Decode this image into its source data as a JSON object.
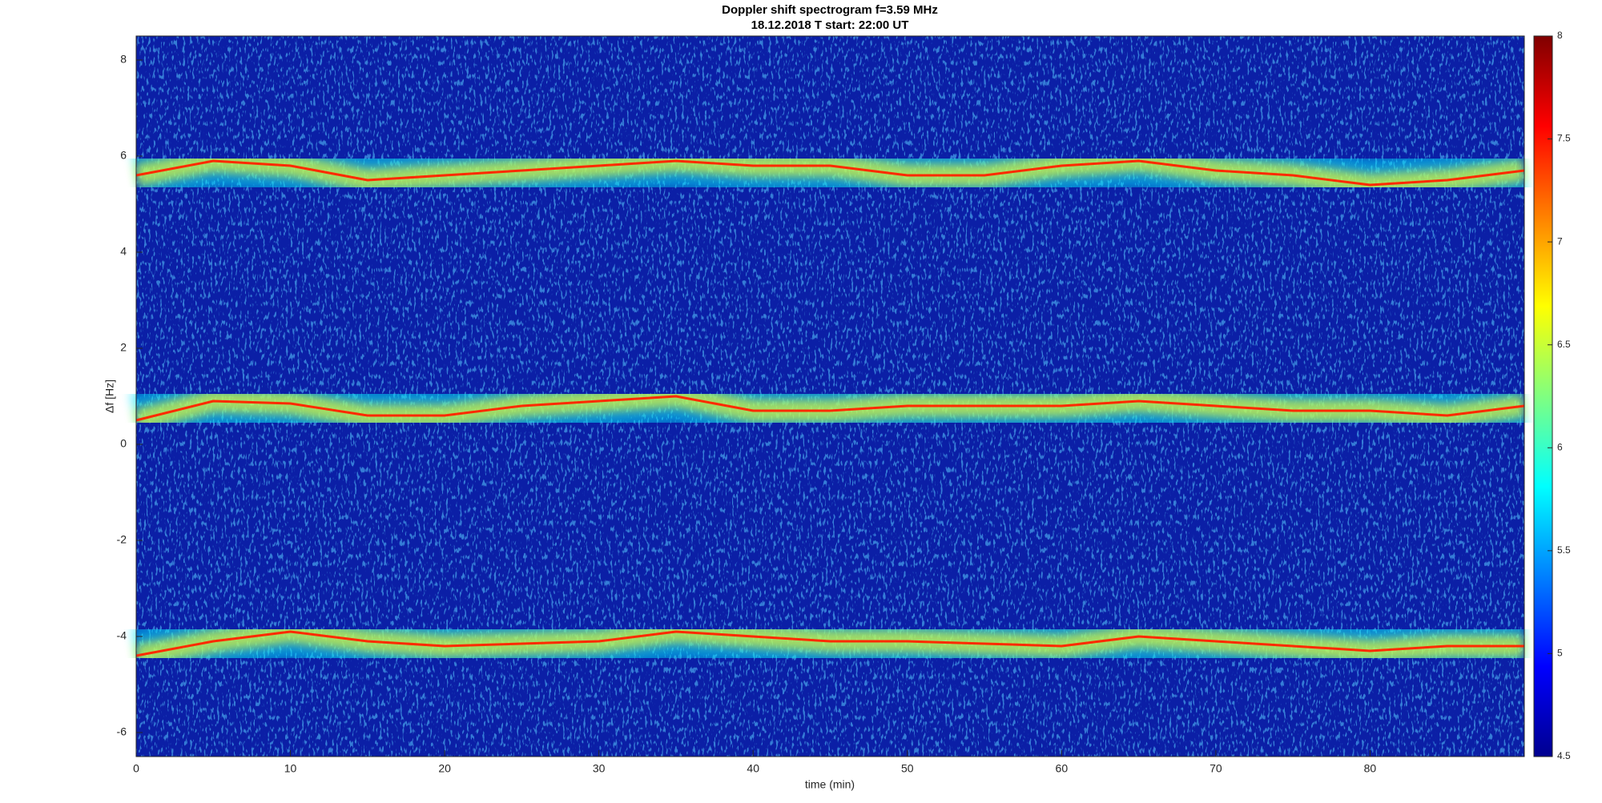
{
  "chart_data": {
    "type": "spectrogram",
    "title": "Doppler shift spectrogram f=3.59 MHz",
    "subtitle": "18.12.2018   T start: 22:00 UT",
    "xlabel": "time (min)",
    "ylabel": "Δf [Hz]",
    "xlim": [
      0,
      90
    ],
    "xticks": [
      0,
      10,
      20,
      30,
      40,
      50,
      60,
      70,
      80
    ],
    "ylim": [
      -6.5,
      8.5
    ],
    "yticks": [
      -6,
      -4,
      -2,
      0,
      2,
      4,
      6,
      8
    ],
    "clim": [
      4.5,
      8
    ],
    "cticks": [
      4.5,
      5,
      5.5,
      6,
      6.5,
      7,
      7.5,
      8
    ],
    "colormap": "jet",
    "x": [
      0,
      5,
      10,
      15,
      20,
      25,
      30,
      35,
      40,
      45,
      50,
      55,
      60,
      65,
      70,
      75,
      80,
      85,
      90
    ],
    "series": [
      {
        "color": "#ff2a00",
        "values": [
          5.6,
          5.9,
          5.8,
          5.5,
          5.6,
          5.7,
          5.8,
          5.9,
          5.8,
          5.8,
          5.6,
          5.6,
          5.8,
          5.9,
          5.7,
          5.6,
          5.4,
          5.5,
          5.7
        ]
      },
      {
        "color": "#ff2a00",
        "values": [
          0.5,
          0.9,
          0.85,
          0.6,
          0.6,
          0.8,
          0.9,
          1.0,
          0.7,
          0.7,
          0.8,
          0.8,
          0.8,
          0.9,
          0.8,
          0.7,
          0.7,
          0.6,
          0.8
        ]
      },
      {
        "color": "#ff2a00",
        "values": [
          -4.4,
          -4.1,
          -3.9,
          -4.1,
          -4.2,
          -4.15,
          -4.1,
          -3.9,
          -4.0,
          -4.1,
          -4.1,
          -4.15,
          -4.2,
          -4.0,
          -4.1,
          -4.2,
          -4.3,
          -4.2,
          -4.2
        ]
      }
    ]
  }
}
